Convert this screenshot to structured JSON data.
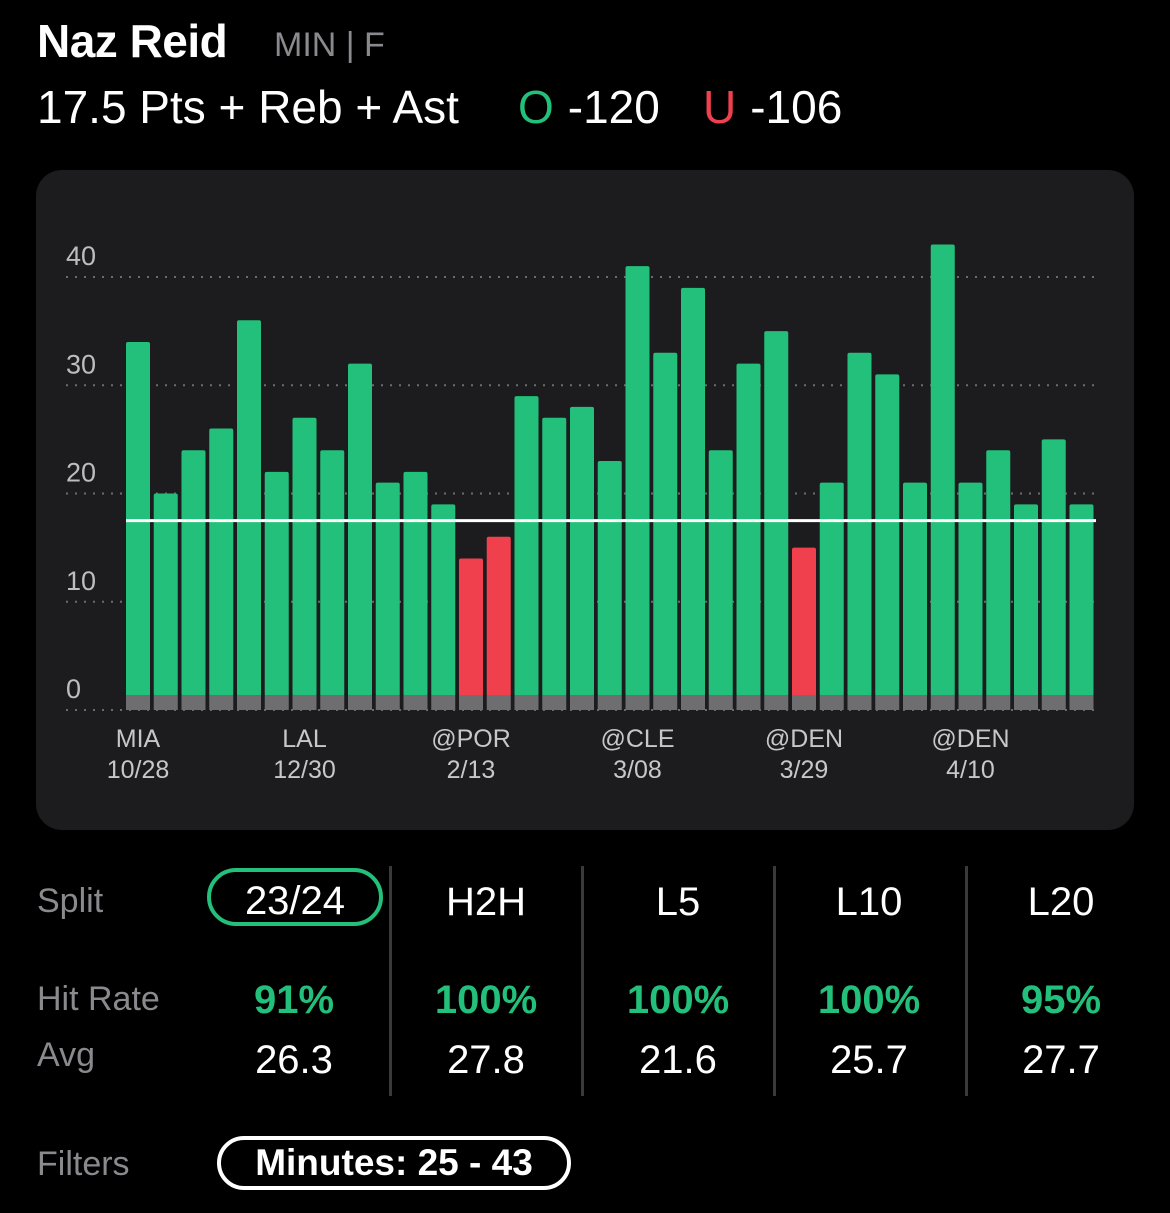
{
  "header": {
    "player_name": "Naz Reid",
    "team_position": "MIN | F",
    "prop_line": "17.5 Pts + Reb + Ast",
    "over_letter": "O",
    "over_odds": "-120",
    "under_letter": "U",
    "under_odds": "-106"
  },
  "colors": {
    "over": "#22c07a",
    "under": "#f0404e",
    "card": "#1c1c1e",
    "muted": "#8a8a8e"
  },
  "chart_data": {
    "type": "bar",
    "line_value": 17.5,
    "ylim": [
      0,
      40
    ],
    "yticks": [
      0,
      10,
      20,
      30,
      40
    ],
    "grid": true,
    "values": [
      34,
      20,
      24,
      26,
      36,
      22,
      27,
      24,
      32,
      21,
      22,
      19,
      14,
      16,
      29,
      27,
      28,
      23,
      41,
      33,
      39,
      24,
      32,
      35,
      15,
      21,
      33,
      31,
      21,
      43,
      21,
      24,
      19,
      25,
      19
    ],
    "x_labels": [
      {
        "index": 0,
        "opponent": "MIA",
        "date": "10/28"
      },
      {
        "index": 6,
        "opponent": "LAL",
        "date": "12/30"
      },
      {
        "index": 12,
        "opponent": "@POR",
        "date": "2/13"
      },
      {
        "index": 18,
        "opponent": "@CLE",
        "date": "3/08"
      },
      {
        "index": 24,
        "opponent": "@DEN",
        "date": "3/29"
      },
      {
        "index": 30,
        "opponent": "@DEN",
        "date": "4/10"
      }
    ]
  },
  "splits": {
    "row_labels": {
      "split": "Split",
      "hit_rate": "Hit Rate",
      "avg": "Avg"
    },
    "columns": [
      {
        "label": "23/24",
        "hit_rate": "91%",
        "avg": "26.3",
        "selected": true
      },
      {
        "label": "H2H",
        "hit_rate": "100%",
        "avg": "27.8",
        "selected": false
      },
      {
        "label": "L5",
        "hit_rate": "100%",
        "avg": "21.6",
        "selected": false
      },
      {
        "label": "L10",
        "hit_rate": "100%",
        "avg": "25.7",
        "selected": false
      },
      {
        "label": "L20",
        "hit_rate": "95%",
        "avg": "27.7",
        "selected": false
      }
    ]
  },
  "filters": {
    "label": "Filters",
    "minutes_chip": "Minutes: 25 - 43"
  }
}
